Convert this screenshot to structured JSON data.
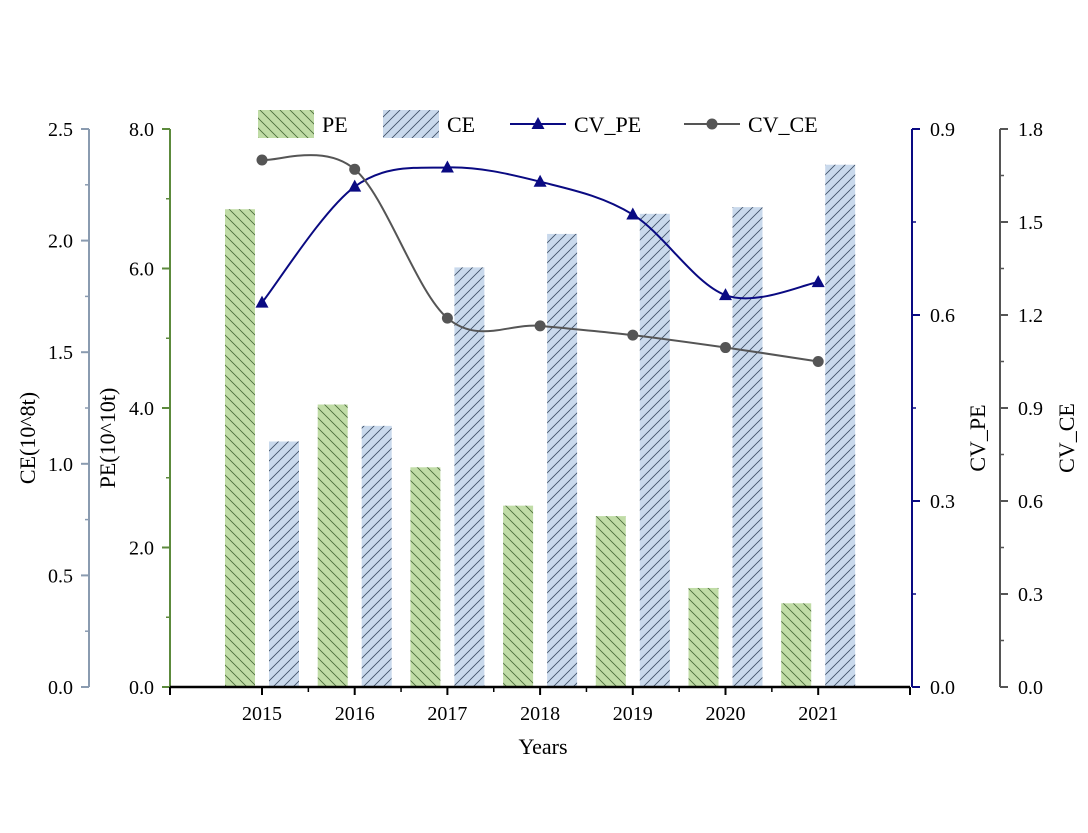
{
  "chart_data": {
    "type": "bar",
    "categories": [
      "2015",
      "2016",
      "2017",
      "2018",
      "2019",
      "2020",
      "2021"
    ],
    "xlabel": "Years",
    "axes": {
      "ce": {
        "label": "CE(10^8t)",
        "range": [
          0,
          2.5
        ],
        "ticks": [
          "0.0",
          "0.5",
          "1.0",
          "1.5",
          "2.0",
          "2.5"
        ],
        "color": "#8a9bb0"
      },
      "pe": {
        "label": "PE(10^10t)",
        "range": [
          0,
          8
        ],
        "ticks": [
          "0.0",
          "2.0",
          "4.0",
          "6.0",
          "8.0"
        ],
        "color": "#5c8a3c"
      },
      "cv_pe": {
        "label": "CV_PE",
        "range": [
          0,
          0.9
        ],
        "ticks": [
          "0.0",
          "0.3",
          "0.6",
          "0.9"
        ],
        "color": "#0a0a82"
      },
      "cv_ce": {
        "label": "CV_CE",
        "range": [
          0,
          1.8
        ],
        "ticks": [
          "0.0",
          "0.3",
          "0.6",
          "0.9",
          "1.2",
          "1.5",
          "1.8"
        ],
        "color": "#555555"
      }
    },
    "series": [
      {
        "name": "PE",
        "kind": "bar",
        "axis": "pe",
        "values": [
          6.85,
          4.05,
          3.15,
          2.6,
          2.45,
          1.42,
          1.2
        ],
        "fill": "#c0dca6",
        "hatch": "#4a6b3a"
      },
      {
        "name": "CE",
        "kind": "bar",
        "axis": "ce",
        "values": [
          1.1,
          1.17,
          1.88,
          2.03,
          2.12,
          2.15,
          2.34
        ],
        "fill": "#c9d9ec",
        "hatch": "#3e4f66"
      },
      {
        "name": "CV_PE",
        "kind": "line",
        "axis": "cv_pe",
        "values": [
          0.62,
          0.807,
          0.838,
          0.815,
          0.762,
          0.632,
          0.653
        ],
        "color": "#0a0a82",
        "marker": "triangle"
      },
      {
        "name": "CV_CE",
        "kind": "line",
        "axis": "cv_ce",
        "values": [
          1.7,
          1.67,
          1.19,
          1.165,
          1.135,
          1.095,
          1.05
        ],
        "color": "#555555",
        "marker": "circle"
      }
    ],
    "legend": {
      "position": "top",
      "items": [
        "PE",
        "CE",
        "CV_PE",
        "CV_CE"
      ]
    },
    "grid": false
  }
}
